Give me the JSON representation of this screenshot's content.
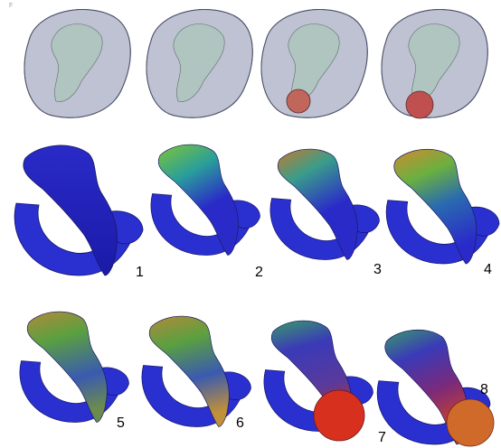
{
  "corner_mark": "F",
  "labels": [
    "1",
    "2",
    "3",
    "4",
    "5",
    "6",
    "7",
    "8"
  ]
}
